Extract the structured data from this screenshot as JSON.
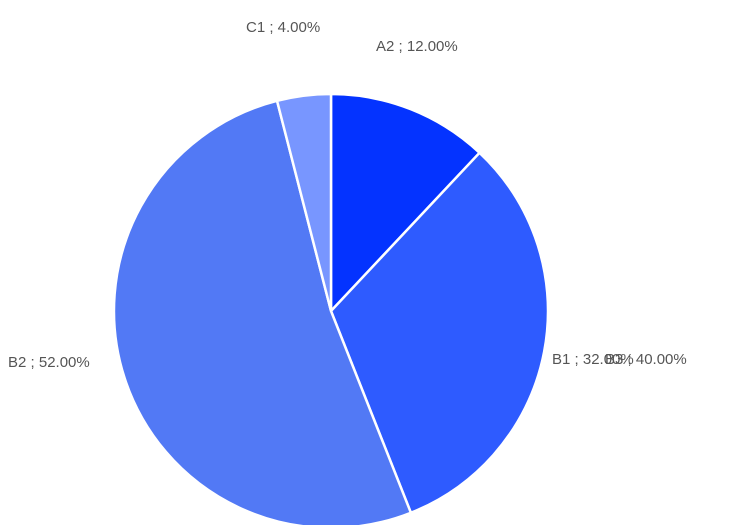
{
  "chart_data": {
    "type": "pie",
    "title": "",
    "slices": [
      {
        "name": "A2",
        "value": 12.0,
        "label": "A2 ; 12.00%",
        "color": "#0433FF"
      },
      {
        "name": "B1",
        "value": 32.0,
        "label": "B1 ; 32.00%",
        "color": "#2E5BFF"
      },
      {
        "name": "B2",
        "value": 52.0,
        "label": "B2 ; 52.00%",
        "color": "#5279F5"
      },
      {
        "name": "C1",
        "value": 4.0,
        "label": "C1 ; 4.00%",
        "color": "#7896FF"
      }
    ],
    "extra_labels": [
      {
        "text": "B3 ; 40.00%",
        "color": "#2E5BFF"
      }
    ],
    "legend": "none"
  }
}
